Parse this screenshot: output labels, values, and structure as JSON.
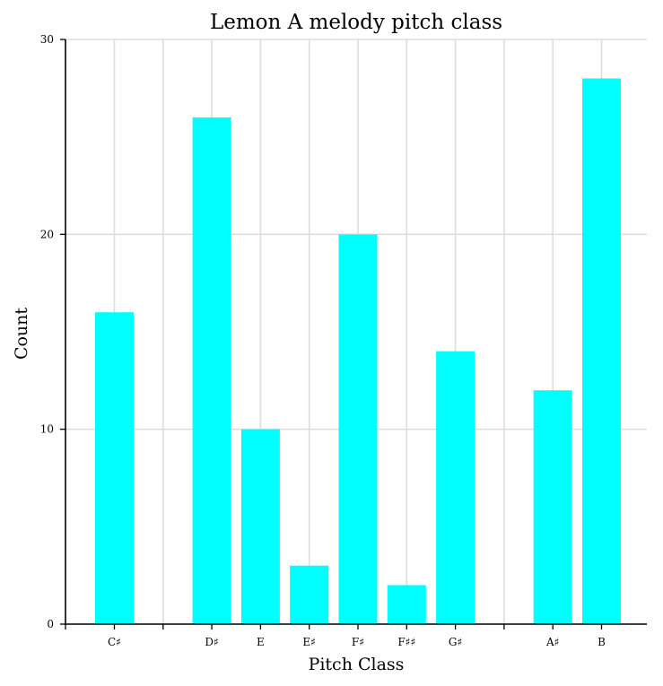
{
  "chart_data": {
    "type": "bar",
    "title": "Lemon A melody pitch class",
    "xlabel": "Pitch Class",
    "ylabel": "Count",
    "ylim": [
      0,
      30
    ],
    "yticks": [
      0,
      10,
      20,
      30
    ],
    "categories": [
      "C♯",
      "",
      "D♯",
      "E",
      "E♯",
      "F♯",
      "F♯♯",
      "G♯",
      "",
      "A♯",
      "B"
    ],
    "values": [
      16,
      0,
      26,
      10,
      3,
      20,
      2,
      14,
      0,
      12,
      28
    ],
    "bar_color": "#00ffff",
    "grid": true
  }
}
